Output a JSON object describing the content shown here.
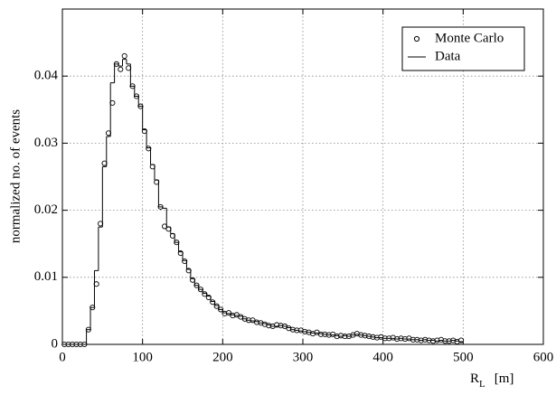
{
  "chart_data": {
    "type": "histogram",
    "y_label": "normalized no. of events",
    "x_label": {
      "symbol": "R",
      "subscript": "L",
      "unit": "[m]"
    },
    "bins": [
      0,
      5,
      10,
      15,
      20,
      25,
      30,
      35,
      40,
      45,
      50,
      55,
      60,
      65,
      70,
      75,
      80,
      85,
      90,
      95,
      100,
      105,
      110,
      115,
      120,
      125,
      130,
      135,
      140,
      145,
      150,
      155,
      160,
      165,
      170,
      175,
      180,
      185,
      190,
      195,
      200,
      205,
      210,
      215,
      220,
      225,
      230,
      235,
      240,
      245,
      250,
      255,
      260,
      265,
      270,
      275,
      280,
      285,
      290,
      295,
      300,
      305,
      310,
      315,
      320,
      325,
      330,
      335,
      340,
      345,
      350,
      355,
      360,
      365,
      370,
      375,
      380,
      385,
      390,
      395,
      400,
      405,
      410,
      415,
      420,
      425,
      430,
      435,
      440,
      445,
      450,
      455,
      460,
      465,
      470,
      475,
      480,
      485,
      490,
      495,
      500
    ],
    "series": [
      {
        "name": "Monte Carlo",
        "marker": "circle",
        "color": "#000000",
        "values": [
          0,
          0,
          0,
          0,
          0,
          0,
          0.0022,
          0.0055,
          0.009,
          0.018,
          0.027,
          0.0315,
          0.036,
          0.0418,
          0.041,
          0.043,
          0.0412,
          0.0385,
          0.037,
          0.0355,
          0.0318,
          0.0292,
          0.0265,
          0.0242,
          0.0205,
          0.0176,
          0.0172,
          0.0162,
          0.0152,
          0.0136,
          0.0124,
          0.011,
          0.0096,
          0.0088,
          0.0082,
          0.0075,
          0.007,
          0.0063,
          0.0057,
          0.0052,
          0.0046,
          0.0047,
          0.0043,
          0.0044,
          0.0041,
          0.0038,
          0.0036,
          0.0036,
          0.0033,
          0.0032,
          0.003,
          0.0028,
          0.0027,
          0.0029,
          0.0028,
          0.0027,
          0.0024,
          0.0022,
          0.0021,
          0.0021,
          0.0019,
          0.0018,
          0.0016,
          0.0018,
          0.0015,
          0.0015,
          0.0014,
          0.0015,
          0.0012,
          0.0013,
          0.0012,
          0.0012,
          0.0014,
          0.0016,
          0.0014,
          0.0013,
          0.0012,
          0.0011,
          0.001,
          0.0011,
          0.0009,
          0.0009,
          0.001,
          0.0008,
          0.0009,
          0.0008,
          0.0009,
          0.0007,
          0.0007,
          0.0006,
          0.0007,
          0.0006,
          0.0005,
          0.0006,
          0.0007,
          0.0005,
          0.0005,
          0.0006,
          0.0004,
          0.0006
        ]
      },
      {
        "name": "Data",
        "style": "step",
        "color": "#000000",
        "values": [
          0,
          0,
          0,
          0,
          0,
          0,
          0.0022,
          0.0055,
          0.011,
          0.0175,
          0.0265,
          0.031,
          0.039,
          0.0418,
          0.0415,
          0.0425,
          0.0418,
          0.0385,
          0.037,
          0.0355,
          0.032,
          0.0293,
          0.0268,
          0.0245,
          0.0205,
          0.0203,
          0.0175,
          0.0165,
          0.0152,
          0.0138,
          0.0125,
          0.0112,
          0.0098,
          0.0088,
          0.0082,
          0.0076,
          0.0072,
          0.0064,
          0.0058,
          0.0052,
          0.0047,
          0.0046,
          0.0044,
          0.0043,
          0.0042,
          0.0038,
          0.0036,
          0.0035,
          0.0034,
          0.0032,
          0.0031,
          0.0029,
          0.0027,
          0.0027,
          0.0028,
          0.0027,
          0.0025,
          0.0022,
          0.0021,
          0.002,
          0.0019,
          0.0018,
          0.0017,
          0.0017,
          0.0016,
          0.0015,
          0.0014,
          0.0014,
          0.0013,
          0.0012,
          0.0013,
          0.0012,
          0.0014,
          0.0015,
          0.0014,
          0.0013,
          0.0012,
          0.0011,
          0.001,
          0.001,
          0.0009,
          0.0009,
          0.0009,
          0.0008,
          0.0009,
          0.0008,
          0.0008,
          0.0007,
          0.0007,
          0.0006,
          0.0007,
          0.0006,
          0.0006,
          0.0005,
          0.0006,
          0.0005,
          0.0005,
          0.0006,
          0.0005,
          0.0004
        ]
      }
    ],
    "xlim": [
      0,
      600
    ],
    "xticks": [
      0,
      100,
      200,
      300,
      400,
      500,
      600
    ],
    "ylim": [
      0,
      0.05
    ],
    "yticks": [
      0,
      0.01,
      0.02,
      0.03,
      0.04
    ],
    "grid": true,
    "legend": "upper right"
  }
}
